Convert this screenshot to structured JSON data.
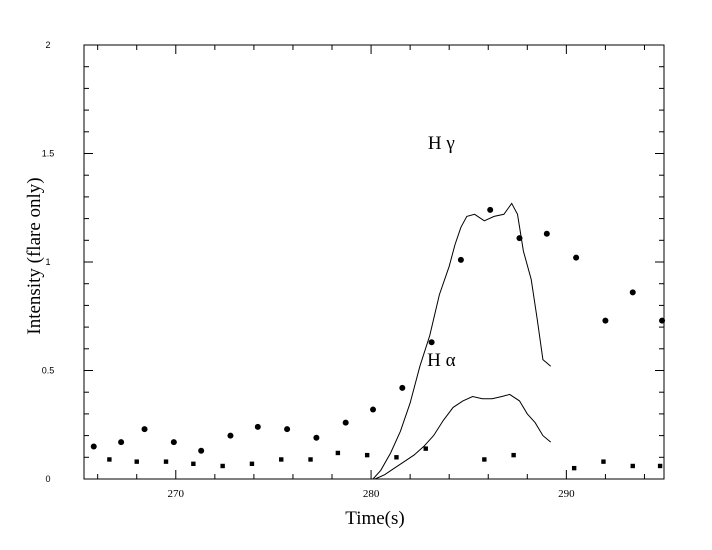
{
  "chart_data": {
    "type": "scatter",
    "title": "",
    "xlabel": "Time(s)",
    "ylabel": "Intensity (flare only)",
    "xlim": [
      265.3,
      295.0
    ],
    "ylim": [
      0,
      2
    ],
    "xticks": [
      {
        "value": 270,
        "label": "270"
      },
      {
        "value": 280,
        "label": "280"
      },
      {
        "value": 290,
        "label": "290"
      }
    ],
    "yticks": [
      {
        "value": 0,
        "label": "0"
      },
      {
        "value": 0.5,
        "label": "0.5"
      },
      {
        "value": 1,
        "label": "1"
      },
      {
        "value": 1.5,
        "label": "1.5"
      },
      {
        "value": 2,
        "label": "2"
      }
    ],
    "grid": false,
    "legend": "none",
    "annotations": [
      {
        "text": "H  γ",
        "x": 283.6,
        "y": 1.52
      },
      {
        "text": "H  α",
        "x": 283.6,
        "y": 0.52
      }
    ],
    "series": [
      {
        "kind": "scatter",
        "marker": "circle",
        "points": [
          [
            265.8,
            0.15
          ],
          [
            267.2,
            0.17
          ],
          [
            268.4,
            0.23
          ],
          [
            269.9,
            0.17
          ],
          [
            271.3,
            0.13
          ],
          [
            272.8,
            0.2
          ],
          [
            274.2,
            0.24
          ],
          [
            275.7,
            0.23
          ],
          [
            277.2,
            0.19
          ],
          [
            278.7,
            0.26
          ],
          [
            280.1,
            0.32
          ],
          [
            281.6,
            0.42
          ],
          [
            283.1,
            0.63
          ],
          [
            284.6,
            1.01
          ],
          [
            286.1,
            1.24
          ],
          [
            287.6,
            1.11
          ],
          [
            289.0,
            1.13
          ],
          [
            290.5,
            1.02
          ],
          [
            292.0,
            0.73
          ],
          [
            293.4,
            0.86
          ],
          [
            294.9,
            0.73
          ]
        ]
      },
      {
        "kind": "scatter",
        "marker": "square",
        "points": [
          [
            266.6,
            0.09
          ],
          [
            268.0,
            0.08
          ],
          [
            269.5,
            0.08
          ],
          [
            270.9,
            0.07
          ],
          [
            272.4,
            0.06
          ],
          [
            273.9,
            0.07
          ],
          [
            275.4,
            0.09
          ],
          [
            276.9,
            0.09
          ],
          [
            278.3,
            0.12
          ],
          [
            279.8,
            0.11
          ],
          [
            281.3,
            0.1
          ],
          [
            282.8,
            0.14
          ],
          [
            285.8,
            0.09
          ],
          [
            287.3,
            0.11
          ],
          [
            290.4,
            0.05
          ],
          [
            291.9,
            0.08
          ],
          [
            293.4,
            0.06
          ],
          [
            294.8,
            0.06
          ]
        ]
      },
      {
        "kind": "line",
        "points": [
          [
            280.1,
            0.0
          ],
          [
            280.5,
            0.04
          ],
          [
            281.0,
            0.12
          ],
          [
            281.5,
            0.22
          ],
          [
            282.0,
            0.35
          ],
          [
            282.5,
            0.52
          ],
          [
            283.0,
            0.66
          ],
          [
            283.5,
            0.85
          ],
          [
            284.0,
            0.98
          ],
          [
            284.3,
            1.08
          ],
          [
            284.6,
            1.16
          ],
          [
            284.9,
            1.21
          ],
          [
            285.3,
            1.22
          ],
          [
            285.8,
            1.19
          ],
          [
            286.3,
            1.21
          ],
          [
            286.8,
            1.22
          ],
          [
            287.2,
            1.27
          ],
          [
            287.5,
            1.22
          ],
          [
            287.8,
            1.05
          ],
          [
            288.2,
            0.92
          ],
          [
            288.5,
            0.74
          ],
          [
            288.8,
            0.55
          ],
          [
            289.2,
            0.52
          ]
        ]
      },
      {
        "kind": "line",
        "points": [
          [
            280.2,
            0.0
          ],
          [
            280.7,
            0.02
          ],
          [
            281.2,
            0.05
          ],
          [
            281.7,
            0.08
          ],
          [
            282.2,
            0.11
          ],
          [
            282.7,
            0.15
          ],
          [
            283.2,
            0.2
          ],
          [
            283.7,
            0.27
          ],
          [
            284.2,
            0.33
          ],
          [
            284.7,
            0.36
          ],
          [
            285.2,
            0.38
          ],
          [
            285.7,
            0.37
          ],
          [
            286.2,
            0.37
          ],
          [
            286.7,
            0.38
          ],
          [
            287.1,
            0.39
          ],
          [
            287.6,
            0.36
          ],
          [
            288.0,
            0.3
          ],
          [
            288.4,
            0.26
          ],
          [
            288.8,
            0.2
          ],
          [
            289.2,
            0.17
          ]
        ]
      }
    ]
  }
}
